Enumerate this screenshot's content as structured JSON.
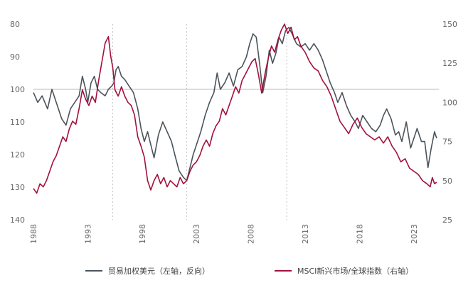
{
  "chart_data": {
    "type": "line",
    "title": "",
    "x_ticks": [
      "1988",
      "1993",
      "1998",
      "2003",
      "2008",
      "2013",
      "2018",
      "2023"
    ],
    "x_range": [
      1988.0,
      2025.3
    ],
    "y_left": {
      "ticks": [
        80,
        90,
        100,
        110,
        120,
        130,
        140
      ],
      "range": [
        80,
        140
      ],
      "inverted": true
    },
    "y_right": {
      "ticks": [
        150,
        125,
        100,
        75,
        50,
        25
      ],
      "range": [
        25,
        150
      ]
    },
    "reference_line": {
      "axis": "left",
      "value": 100,
      "color": "#c8c8c8"
    },
    "vertical_markers": [
      1995.3,
      2002.1,
      2011.3
    ],
    "series": [
      {
        "name": "贸易加权美元（左轴，反向）",
        "axis": "left",
        "color": "#4b545c",
        "points": [
          [
            1988.0,
            101
          ],
          [
            1988.4,
            104
          ],
          [
            1988.8,
            102
          ],
          [
            1989.3,
            106
          ],
          [
            1989.7,
            100
          ],
          [
            1990.2,
            105
          ],
          [
            1990.6,
            109
          ],
          [
            1991.0,
            111
          ],
          [
            1991.4,
            106
          ],
          [
            1991.8,
            104
          ],
          [
            1992.2,
            102
          ],
          [
            1992.5,
            96
          ],
          [
            1992.8,
            100
          ],
          [
            1993.0,
            104
          ],
          [
            1993.3,
            98
          ],
          [
            1993.6,
            96
          ],
          [
            1993.9,
            100
          ],
          [
            1994.2,
            101
          ],
          [
            1994.6,
            102
          ],
          [
            1994.9,
            100
          ],
          [
            1995.2,
            99
          ],
          [
            1995.4,
            98
          ],
          [
            1995.6,
            94
          ],
          [
            1995.8,
            93
          ],
          [
            1996.1,
            96
          ],
          [
            1996.4,
            97
          ],
          [
            1996.8,
            99
          ],
          [
            1997.2,
            101
          ],
          [
            1997.6,
            106
          ],
          [
            1997.9,
            112
          ],
          [
            1998.2,
            116
          ],
          [
            1998.5,
            113
          ],
          [
            1998.8,
            117
          ],
          [
            1999.1,
            121
          ],
          [
            1999.5,
            114
          ],
          [
            1999.9,
            110
          ],
          [
            2000.3,
            113
          ],
          [
            2000.7,
            116
          ],
          [
            2001.0,
            120
          ],
          [
            2001.4,
            125
          ],
          [
            2001.8,
            127
          ],
          [
            2002.1,
            128
          ],
          [
            2002.4,
            124
          ],
          [
            2002.7,
            120
          ],
          [
            2003.0,
            117
          ],
          [
            2003.4,
            113
          ],
          [
            2003.8,
            108
          ],
          [
            2004.2,
            104
          ],
          [
            2004.6,
            101
          ],
          [
            2004.9,
            95
          ],
          [
            2005.2,
            100
          ],
          [
            2005.6,
            98
          ],
          [
            2006.0,
            95
          ],
          [
            2006.4,
            99
          ],
          [
            2006.8,
            94
          ],
          [
            2007.2,
            93
          ],
          [
            2007.6,
            90
          ],
          [
            2007.9,
            86
          ],
          [
            2008.2,
            83
          ],
          [
            2008.5,
            84
          ],
          [
            2008.8,
            92
          ],
          [
            2009.1,
            101
          ],
          [
            2009.4,
            96
          ],
          [
            2009.7,
            88
          ],
          [
            2010.0,
            92
          ],
          [
            2010.3,
            89
          ],
          [
            2010.6,
            84
          ],
          [
            2010.9,
            86
          ],
          [
            2011.2,
            82
          ],
          [
            2011.5,
            81
          ],
          [
            2011.8,
            83
          ],
          [
            2012.2,
            86
          ],
          [
            2012.6,
            87
          ],
          [
            2013.0,
            86
          ],
          [
            2013.4,
            88
          ],
          [
            2013.8,
            86
          ],
          [
            2014.2,
            88
          ],
          [
            2014.6,
            91
          ],
          [
            2014.9,
            94
          ],
          [
            2015.3,
            98
          ],
          [
            2015.7,
            101
          ],
          [
            2016.0,
            104
          ],
          [
            2016.4,
            101
          ],
          [
            2016.8,
            105
          ],
          [
            2017.2,
            108
          ],
          [
            2017.6,
            110
          ],
          [
            2017.9,
            112
          ],
          [
            2018.3,
            108
          ],
          [
            2018.7,
            110
          ],
          [
            2019.1,
            112
          ],
          [
            2019.5,
            113
          ],
          [
            2019.9,
            111
          ],
          [
            2020.2,
            108
          ],
          [
            2020.5,
            106
          ],
          [
            2020.9,
            109
          ],
          [
            2021.3,
            114
          ],
          [
            2021.6,
            113
          ],
          [
            2021.9,
            116
          ],
          [
            2022.3,
            110
          ],
          [
            2022.7,
            118
          ],
          [
            2023.0,
            115
          ],
          [
            2023.3,
            112
          ],
          [
            2023.7,
            116
          ],
          [
            2024.0,
            116
          ],
          [
            2024.3,
            124
          ],
          [
            2024.6,
            118
          ],
          [
            2024.9,
            113
          ],
          [
            2025.1,
            115
          ]
        ]
      },
      {
        "name": "MSCI新兴市场/全球指数（右轴）",
        "axis": "right",
        "color": "#a3103c",
        "points": [
          [
            1988.0,
            45
          ],
          [
            1988.3,
            42
          ],
          [
            1988.6,
            48
          ],
          [
            1988.9,
            46
          ],
          [
            1989.2,
            50
          ],
          [
            1989.5,
            56
          ],
          [
            1989.8,
            62
          ],
          [
            1990.1,
            66
          ],
          [
            1990.4,
            72
          ],
          [
            1990.7,
            78
          ],
          [
            1991.0,
            75
          ],
          [
            1991.3,
            83
          ],
          [
            1991.6,
            88
          ],
          [
            1991.9,
            86
          ],
          [
            1992.2,
            96
          ],
          [
            1992.5,
            108
          ],
          [
            1992.8,
            102
          ],
          [
            1993.1,
            98
          ],
          [
            1993.4,
            104
          ],
          [
            1993.7,
            100
          ],
          [
            1994.0,
            114
          ],
          [
            1994.3,
            126
          ],
          [
            1994.6,
            138
          ],
          [
            1994.9,
            142
          ],
          [
            1995.1,
            130
          ],
          [
            1995.3,
            122
          ],
          [
            1995.5,
            108
          ],
          [
            1995.8,
            104
          ],
          [
            1996.1,
            110
          ],
          [
            1996.4,
            104
          ],
          [
            1996.7,
            100
          ],
          [
            1997.0,
            98
          ],
          [
            1997.3,
            92
          ],
          [
            1997.6,
            78
          ],
          [
            1997.9,
            72
          ],
          [
            1998.2,
            65
          ],
          [
            1998.5,
            50
          ],
          [
            1998.8,
            44
          ],
          [
            1999.1,
            50
          ],
          [
            1999.4,
            54
          ],
          [
            1999.7,
            48
          ],
          [
            2000.0,
            52
          ],
          [
            2000.3,
            46
          ],
          [
            2000.6,
            50
          ],
          [
            2000.9,
            48
          ],
          [
            2001.2,
            46
          ],
          [
            2001.5,
            52
          ],
          [
            2001.8,
            48
          ],
          [
            2002.1,
            50
          ],
          [
            2002.4,
            56
          ],
          [
            2002.7,
            60
          ],
          [
            2003.0,
            62
          ],
          [
            2003.3,
            66
          ],
          [
            2003.6,
            72
          ],
          [
            2003.9,
            76
          ],
          [
            2004.2,
            72
          ],
          [
            2004.5,
            80
          ],
          [
            2004.8,
            85
          ],
          [
            2005.1,
            88
          ],
          [
            2005.4,
            96
          ],
          [
            2005.7,
            92
          ],
          [
            2006.0,
            98
          ],
          [
            2006.3,
            104
          ],
          [
            2006.6,
            110
          ],
          [
            2006.9,
            106
          ],
          [
            2007.2,
            114
          ],
          [
            2007.5,
            118
          ],
          [
            2007.8,
            122
          ],
          [
            2008.1,
            126
          ],
          [
            2008.4,
            128
          ],
          [
            2008.7,
            118
          ],
          [
            2009.0,
            106
          ],
          [
            2009.3,
            118
          ],
          [
            2009.6,
            128
          ],
          [
            2009.9,
            136
          ],
          [
            2010.2,
            132
          ],
          [
            2010.5,
            140
          ],
          [
            2010.8,
            146
          ],
          [
            2011.1,
            150
          ],
          [
            2011.4,
            144
          ],
          [
            2011.7,
            148
          ],
          [
            2012.0,
            140
          ],
          [
            2012.3,
            142
          ],
          [
            2012.6,
            136
          ],
          [
            2013.0,
            132
          ],
          [
            2013.4,
            126
          ],
          [
            2013.8,
            122
          ],
          [
            2014.2,
            120
          ],
          [
            2014.6,
            114
          ],
          [
            2015.0,
            110
          ],
          [
            2015.4,
            104
          ],
          [
            2015.8,
            96
          ],
          [
            2016.2,
            88
          ],
          [
            2016.6,
            84
          ],
          [
            2017.0,
            80
          ],
          [
            2017.4,
            86
          ],
          [
            2017.8,
            90
          ],
          [
            2018.2,
            84
          ],
          [
            2018.6,
            80
          ],
          [
            2019.0,
            78
          ],
          [
            2019.4,
            76
          ],
          [
            2019.8,
            78
          ],
          [
            2020.2,
            74
          ],
          [
            2020.6,
            78
          ],
          [
            2021.0,
            72
          ],
          [
            2021.4,
            68
          ],
          [
            2021.8,
            62
          ],
          [
            2022.2,
            64
          ],
          [
            2022.6,
            58
          ],
          [
            2023.0,
            56
          ],
          [
            2023.4,
            54
          ],
          [
            2023.8,
            50
          ],
          [
            2024.2,
            48
          ],
          [
            2024.5,
            46
          ],
          [
            2024.7,
            52
          ],
          [
            2024.9,
            48
          ],
          [
            2025.1,
            49
          ]
        ]
      }
    ]
  }
}
